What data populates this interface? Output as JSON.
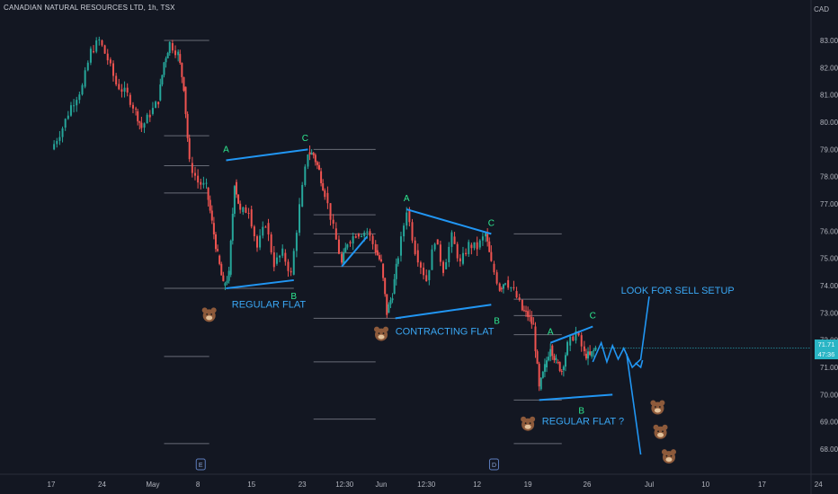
{
  "header": {
    "title": "CANADIAN NATURAL RESOURCES LTD, 1h, TSX",
    "currency": "CAD"
  },
  "price_box": {
    "price": "71.71",
    "countdown": "47:36"
  },
  "chart_data": {
    "type": "candlestick",
    "title": "CANADIAN NATURAL RESOURCES LTD, 1h, TSX",
    "ylim": [
      67.5,
      83.5
    ],
    "y_ticks": [
      "83.00",
      "82.00",
      "81.00",
      "80.00",
      "79.00",
      "78.00",
      "77.00",
      "76.00",
      "75.00",
      "74.00",
      "73.00",
      "72.00",
      "71.00",
      "70.00",
      "69.00",
      "68.00"
    ],
    "x_ticks": [
      "17",
      "24",
      "May",
      "8",
      "15",
      "23",
      "12:30",
      "Jun",
      "12:30",
      "12",
      "19",
      "26",
      "Jul",
      "10",
      "17",
      "24"
    ],
    "x_positions": [
      0.0,
      0.9,
      1.8,
      2.6,
      3.55,
      4.45,
      5.2,
      5.85,
      6.65,
      7.55,
      8.45,
      9.5,
      10.6,
      11.6,
      12.6,
      13.6
    ],
    "xlim": [
      -0.8,
      14.3
    ],
    "last_price": 71.71,
    "path": [
      [
        0,
        79
      ],
      [
        0.2,
        79.8
      ],
      [
        0.35,
        80.6
      ],
      [
        0.55,
        81.3
      ],
      [
        0.7,
        82.6
      ],
      [
        0.85,
        83.0
      ],
      [
        1.0,
        82.3
      ],
      [
        1.15,
        81.4
      ],
      [
        1.35,
        81.0
      ],
      [
        1.5,
        80.4
      ],
      [
        1.6,
        79.8
      ],
      [
        1.75,
        80.3
      ],
      [
        1.9,
        80.8
      ],
      [
        2.0,
        82.2
      ],
      [
        2.1,
        82.9
      ],
      [
        2.25,
        82.5
      ],
      [
        2.35,
        81.3
      ],
      [
        2.45,
        78.5
      ],
      [
        2.6,
        77.8
      ],
      [
        2.75,
        77.6
      ],
      [
        2.85,
        76.3
      ],
      [
        2.95,
        75.1
      ],
      [
        3.05,
        74.0
      ],
      [
        3.15,
        74.4
      ],
      [
        3.25,
        77.8
      ],
      [
        3.35,
        76.7
      ],
      [
        3.5,
        76.8
      ],
      [
        3.65,
        75.4
      ],
      [
        3.8,
        76.3
      ],
      [
        3.95,
        74.8
      ],
      [
        4.1,
        75.2
      ],
      [
        4.25,
        74.4
      ],
      [
        4.4,
        76.9
      ],
      [
        4.55,
        78.9
      ],
      [
        4.65,
        78.8
      ],
      [
        4.75,
        78.2
      ],
      [
        4.85,
        77.4
      ],
      [
        5.0,
        76.1
      ],
      [
        5.15,
        74.8
      ],
      [
        5.25,
        75.6
      ],
      [
        5.4,
        75.9
      ],
      [
        5.6,
        76.0
      ],
      [
        5.75,
        75.3
      ],
      [
        5.85,
        74.8
      ],
      [
        5.95,
        73.0
      ],
      [
        6.05,
        73.7
      ],
      [
        6.15,
        75.1
      ],
      [
        6.3,
        76.8
      ],
      [
        6.45,
        75.3
      ],
      [
        6.65,
        74.2
      ],
      [
        6.8,
        75.7
      ],
      [
        6.95,
        74.6
      ],
      [
        7.1,
        75.8
      ],
      [
        7.25,
        74.8
      ],
      [
        7.4,
        75.5
      ],
      [
        7.55,
        75.4
      ],
      [
        7.7,
        75.9
      ],
      [
        7.8,
        74.8
      ],
      [
        7.95,
        73.9
      ],
      [
        8.05,
        74.2
      ],
      [
        8.2,
        73.8
      ],
      [
        8.35,
        73.1
      ],
      [
        8.45,
        72.9
      ],
      [
        8.55,
        72.5
      ],
      [
        8.65,
        70.2
      ],
      [
        8.75,
        71.0
      ],
      [
        8.85,
        71.8
      ],
      [
        8.95,
        71.2
      ],
      [
        9.05,
        70.9
      ],
      [
        9.15,
        71.8
      ],
      [
        9.3,
        72.3
      ],
      [
        9.45,
        71.5
      ],
      [
        9.55,
        71.4
      ],
      [
        9.65,
        71.7
      ]
    ],
    "levels": [
      {
        "y": 83.0,
        "x0": 2.0,
        "x1": 2.8
      },
      {
        "y": 79.5,
        "x0": 2.0,
        "x1": 2.8
      },
      {
        "y": 78.4,
        "x0": 2.0,
        "x1": 2.8
      },
      {
        "y": 77.4,
        "x0": 2.0,
        "x1": 2.8
      },
      {
        "y": 73.9,
        "x0": 2.0,
        "x1": 4.3
      },
      {
        "y": 71.4,
        "x0": 2.0,
        "x1": 2.8
      },
      {
        "y": 68.2,
        "x0": 2.0,
        "x1": 2.8
      },
      {
        "y": 79.0,
        "x0": 4.65,
        "x1": 5.75
      },
      {
        "y": 76.6,
        "x0": 4.65,
        "x1": 5.75
      },
      {
        "y": 75.9,
        "x0": 4.65,
        "x1": 5.75
      },
      {
        "y": 75.2,
        "x0": 4.65,
        "x1": 5.75
      },
      {
        "y": 74.7,
        "x0": 4.65,
        "x1": 5.75
      },
      {
        "y": 72.8,
        "x0": 4.65,
        "x1": 6.2
      },
      {
        "y": 71.2,
        "x0": 4.65,
        "x1": 5.75
      },
      {
        "y": 69.1,
        "x0": 4.65,
        "x1": 5.75
      },
      {
        "y": 75.9,
        "x0": 8.2,
        "x1": 9.05
      },
      {
        "y": 73.5,
        "x0": 8.2,
        "x1": 9.05
      },
      {
        "y": 72.9,
        "x0": 8.2,
        "x1": 9.05
      },
      {
        "y": 72.2,
        "x0": 8.2,
        "x1": 9.05
      },
      {
        "y": 69.8,
        "x0": 8.2,
        "x1": 9.05
      },
      {
        "y": 68.2,
        "x0": 8.2,
        "x1": 9.05
      }
    ],
    "trendlines": [
      {
        "x0": 3.1,
        "y0": 78.6,
        "x1": 4.55,
        "y1": 79.0
      },
      {
        "x0": 3.1,
        "y0": 73.9,
        "x0b": 0,
        "x1": 4.3,
        "y1": 74.2
      },
      {
        "x0": 5.15,
        "y0": 74.7,
        "x1": 5.6,
        "y1": 75.8
      },
      {
        "x0": 6.3,
        "y0": 76.8,
        "x1": 7.8,
        "y1": 75.9
      },
      {
        "x0": 6.1,
        "y0": 72.8,
        "x1": 7.8,
        "y1": 73.3
      },
      {
        "x0": 8.85,
        "y0": 71.9,
        "x1": 9.6,
        "y1": 72.5
      },
      {
        "x0": 8.65,
        "y0": 69.8,
        "x1": 9.95,
        "y1": 70.0
      }
    ],
    "forecast": [
      [
        9.6,
        71.2
      ],
      [
        9.75,
        71.9
      ],
      [
        9.85,
        71.2
      ],
      [
        9.95,
        71.8
      ],
      [
        10.05,
        71.3
      ],
      [
        10.15,
        71.7
      ],
      [
        10.3,
        71.0
      ],
      [
        10.45,
        71.3
      ],
      [
        10.6,
        73.6
      ]
    ],
    "forecast_down": [
      [
        10.2,
        71.5
      ],
      [
        10.45,
        67.8
      ]
    ],
    "wave_labels": [
      {
        "text": "A",
        "x": 3.1,
        "y": 78.9
      },
      {
        "text": "C",
        "x": 4.5,
        "y": 79.3
      },
      {
        "text": "B",
        "x": 4.3,
        "y": 73.5
      },
      {
        "text": "A",
        "x": 6.3,
        "y": 77.1
      },
      {
        "text": "C",
        "x": 7.8,
        "y": 76.2
      },
      {
        "text": "B",
        "x": 7.9,
        "y": 72.6
      },
      {
        "text": "A",
        "x": 8.85,
        "y": 72.2
      },
      {
        "text": "C",
        "x": 9.6,
        "y": 72.8
      },
      {
        "text": "B",
        "x": 9.4,
        "y": 69.3
      }
    ],
    "annotations": [
      {
        "text": "REGULAR FLAT",
        "x": 3.2,
        "y": 73.2
      },
      {
        "text": "CONTRACTING FLAT",
        "x": 6.1,
        "y": 72.2
      },
      {
        "text": "REGULAR FLAT ?",
        "x": 8.7,
        "y": 68.9
      },
      {
        "text": "LOOK FOR SELL SETUP",
        "x": 10.1,
        "y": 73.7
      }
    ],
    "bear_icons": [
      [
        2.8,
        72.9
      ],
      [
        5.85,
        72.2
      ],
      [
        8.45,
        68.9
      ],
      [
        10.75,
        69.5
      ],
      [
        10.8,
        68.6
      ],
      [
        10.95,
        67.7
      ]
    ],
    "event_markers": [
      {
        "text": "E",
        "x": 2.65
      },
      {
        "text": "D",
        "x": 7.85
      }
    ]
  }
}
